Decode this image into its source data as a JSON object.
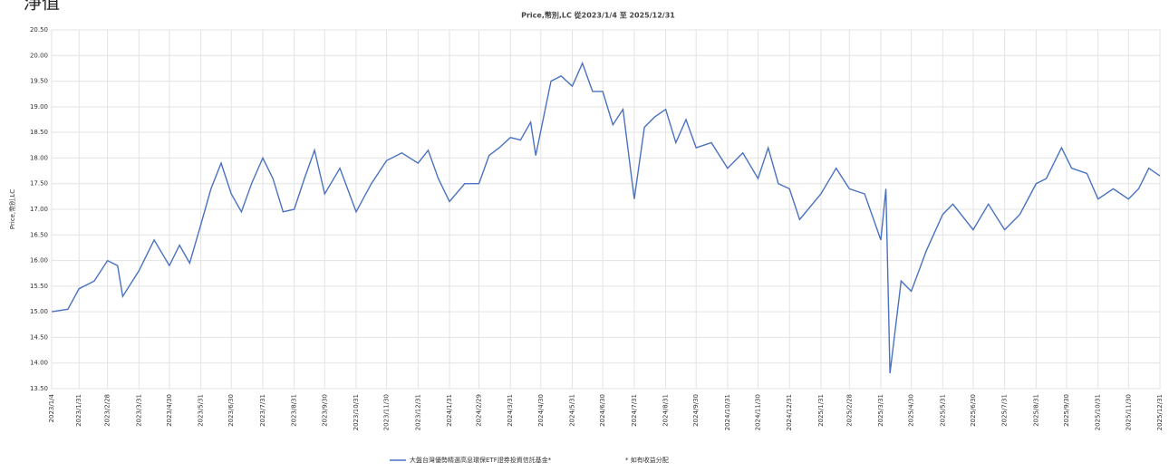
{
  "page_label": "淨值",
  "chart_data": {
    "type": "line",
    "title": "Price,幣別,LC 從2023/1/4 至 2025/12/31",
    "y_label": "Price,幣別,LC",
    "note": "* 如有收益分配",
    "x": [
      "2023/1/4",
      "2023/1/20",
      "2023/1/31",
      "2023/2/15",
      "2023/2/28",
      "2023/3/10",
      "2023/3/15",
      "2023/3/31",
      "2023/4/15",
      "2023/4/30",
      "2023/5/10",
      "2023/5/20",
      "2023/5/31",
      "2023/6/10",
      "2023/6/20",
      "2023/6/30",
      "2023/7/10",
      "2023/7/20",
      "2023/7/31",
      "2023/8/10",
      "2023/8/20",
      "2023/8/31",
      "2023/9/10",
      "2023/9/20",
      "2023/9/30",
      "2023/10/15",
      "2023/10/31",
      "2023/11/15",
      "2023/11/30",
      "2023/12/15",
      "2023/12/31",
      "2024/1/10",
      "2024/1/20",
      "2024/1/31",
      "2024/2/15",
      "2024/2/29",
      "2024/3/10",
      "2024/3/20",
      "2024/3/31",
      "2024/4/10",
      "2024/4/20",
      "2024/4/25",
      "2024/5/10",
      "2024/5/20",
      "2024/5/31",
      "2024/6/10",
      "2024/6/20",
      "2024/6/30",
      "2024/7/10",
      "2024/7/20",
      "2024/7/31",
      "2024/8/10",
      "2024/8/20",
      "2024/8/31",
      "2024/9/10",
      "2024/9/20",
      "2024/9/30",
      "2024/10/15",
      "2024/10/31",
      "2024/11/15",
      "2024/11/30",
      "2024/12/10",
      "2024/12/20",
      "2024/12/31",
      "2025/1/10",
      "2025/1/31",
      "2025/2/15",
      "2025/2/28",
      "2025/3/15",
      "2025/3/31",
      "2025/4/5",
      "2025/4/9",
      "2025/4/20",
      "2025/4/30",
      "2025/5/15",
      "2025/5/31",
      "2025/6/10",
      "2025/6/30",
      "2025/7/15",
      "2025/7/31",
      "2025/8/15",
      "2025/8/31",
      "2025/9/10",
      "2025/9/25",
      "2025/10/5",
      "2025/10/20",
      "2025/10/31",
      "2025/11/15",
      "2025/11/30",
      "2025/12/10",
      "2025/12/20",
      "2025/12/31"
    ],
    "series": [
      {
        "name": "大盤台灣優勢精選高息環保ETF證券投資信託基金*",
        "color": "#4a72c0",
        "values": [
          15.0,
          15.05,
          15.45,
          15.6,
          16.0,
          15.9,
          15.3,
          15.8,
          16.4,
          15.9,
          16.3,
          15.95,
          16.7,
          17.4,
          17.9,
          17.3,
          16.95,
          17.5,
          18.0,
          17.6,
          16.95,
          17.0,
          17.6,
          18.15,
          17.3,
          17.8,
          16.95,
          17.5,
          17.95,
          18.1,
          17.9,
          18.15,
          17.6,
          17.15,
          17.5,
          17.5,
          18.05,
          18.2,
          18.4,
          18.35,
          18.7,
          18.05,
          19.5,
          19.6,
          19.4,
          19.85,
          19.3,
          19.3,
          18.65,
          18.95,
          17.2,
          18.6,
          18.8,
          18.95,
          18.3,
          18.75,
          18.2,
          18.3,
          17.8,
          18.1,
          17.6,
          18.2,
          17.5,
          17.4,
          16.8,
          17.3,
          17.8,
          17.4,
          17.3,
          16.4,
          17.4,
          13.8,
          15.6,
          15.4,
          16.2,
          16.9,
          17.1,
          16.6,
          17.1,
          16.6,
          16.9,
          17.5,
          17.6,
          18.2,
          17.8,
          17.7,
          17.2,
          17.4,
          17.2,
          17.4,
          17.8,
          17.65
        ]
      }
    ],
    "xlim": [
      "2023/1/4",
      "2025/12/31"
    ],
    "xticks": [
      "2023/1/4",
      "2023/1/31",
      "2023/2/28",
      "2023/3/31",
      "2023/4/30",
      "2023/5/31",
      "2023/6/30",
      "2023/7/31",
      "2023/8/31",
      "2023/9/30",
      "2023/10/31",
      "2023/11/30",
      "2023/12/31",
      "2024/1/31",
      "2024/2/29",
      "2024/3/31",
      "2024/4/30",
      "2024/5/31",
      "2024/6/30",
      "2024/7/31",
      "2024/8/31",
      "2024/9/30",
      "2024/10/31",
      "2024/11/30",
      "2024/12/31",
      "2025/1/31",
      "2025/2/28",
      "2025/3/31",
      "2025/4/30",
      "2025/5/31",
      "2025/6/30",
      "2025/7/31",
      "2025/8/31",
      "2025/9/30",
      "2025/10/31",
      "2025/11/30",
      "2025/12/31"
    ],
    "ylim": [
      13.5,
      20.5
    ],
    "yticks": [
      {
        "value": 13.5,
        "label": "13.50"
      },
      {
        "value": 14,
        "label": "14.00"
      },
      {
        "value": 14.5,
        "label": "14.50"
      },
      {
        "value": 15,
        "label": "15.00"
      },
      {
        "value": 15.5,
        "label": "15.50"
      },
      {
        "value": 16,
        "label": "16.00"
      },
      {
        "value": 16.5,
        "label": "16.50"
      },
      {
        "value": 17,
        "label": "17.00"
      },
      {
        "value": 17.5,
        "label": "17.50"
      },
      {
        "value": 18,
        "label": "18.00"
      },
      {
        "value": 18.5,
        "label": "18.50"
      },
      {
        "value": 19,
        "label": "19.00"
      },
      {
        "value": 19.5,
        "label": "19.50"
      },
      {
        "value": 20,
        "label": "20.00"
      },
      {
        "value": 20.5,
        "label": "20.50"
      }
    ],
    "grid": true
  }
}
